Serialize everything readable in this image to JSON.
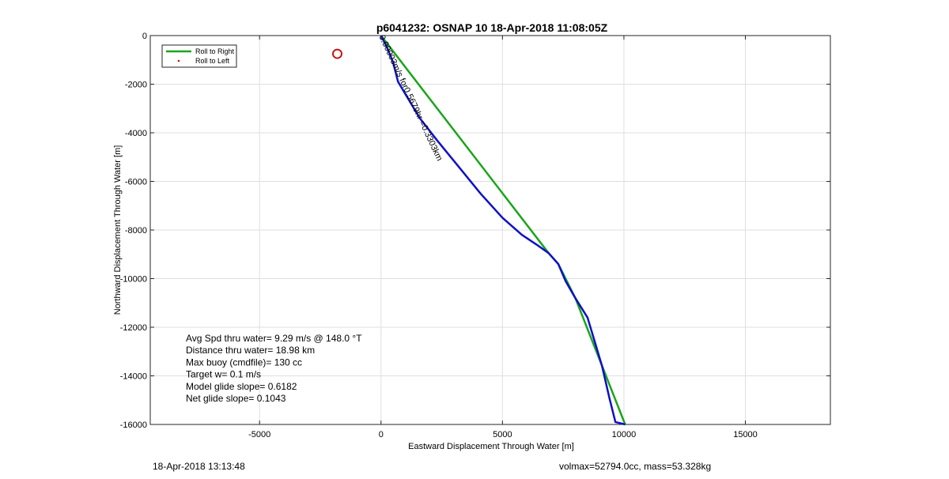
{
  "chart_data": {
    "type": "line",
    "title": "p6041232: OSNAP 10 18-Apr-2018 11:08:05Z",
    "xlabel": "Eastward Displacement Through Water [m]",
    "ylabel": "Northward Displacement Through Water [m]",
    "xlim": [
      -9500,
      18500
    ],
    "ylim": [
      -16000,
      0
    ],
    "xticks": [
      -5000,
      0,
      5000,
      10000,
      15000
    ],
    "yticks": [
      0,
      -2000,
      -4000,
      -6000,
      -8000,
      -10000,
      -12000,
      -14000,
      -16000
    ],
    "grid": true,
    "legend": {
      "placement": "top-left",
      "entries": [
        "Roll to Right",
        "Roll to Left"
      ]
    },
    "series": [
      {
        "name": "Roll to Right",
        "color": "#1aa51a",
        "points": [
          [
            0,
            0
          ],
          [
            6900,
            -8950
          ],
          [
            7300,
            -9400
          ],
          [
            8000,
            -10800
          ],
          [
            10050,
            -16000
          ]
        ]
      },
      {
        "color": "#1010c8",
        "points": [
          [
            0,
            0
          ],
          [
            250,
            -500
          ],
          [
            500,
            -1100
          ],
          [
            700,
            -1900
          ],
          [
            1000,
            -2400
          ],
          [
            1600,
            -3400
          ],
          [
            2300,
            -4300
          ],
          [
            3200,
            -5400
          ],
          [
            4100,
            -6500
          ],
          [
            5000,
            -7500
          ],
          [
            5800,
            -8200
          ],
          [
            6400,
            -8600
          ],
          [
            6900,
            -8950
          ],
          [
            7300,
            -9400
          ],
          [
            7600,
            -10100
          ],
          [
            8000,
            -10800
          ],
          [
            8500,
            -11600
          ],
          [
            8800,
            -12600
          ],
          [
            9100,
            -13600
          ],
          [
            9400,
            -14900
          ],
          [
            9650,
            -15900
          ],
          [
            10050,
            -16000
          ]
        ]
      },
      {
        "name": "Roll to Left",
        "color": "#c81414",
        "points": [
          [
            -1800,
            -750
          ]
        ]
      }
    ],
    "marker": {
      "x": -1800,
      "y": -750,
      "color": "#c81414"
    },
    "path_label": "0.00003m/s for0.5679hr =0.3303km",
    "stats": [
      "Avg Spd thru water=  9.29 m/s @ 148.0 °T",
      "Distance thru water= 18.98 km",
      "Max buoy (cmdfile)= 130 cc",
      "Target w= 0.1 m/s",
      "Model glide slope= 0.6182",
      "Net glide slope= 0.1043"
    ]
  },
  "footer": {
    "timestamp": "18-Apr-2018 13:13:48",
    "volume_mass": "volmax=52794.0cc, mass=53.328kg"
  },
  "colors": {
    "axis": "#262626",
    "grid": "#dfdfdf",
    "background": "#ffffff"
  }
}
